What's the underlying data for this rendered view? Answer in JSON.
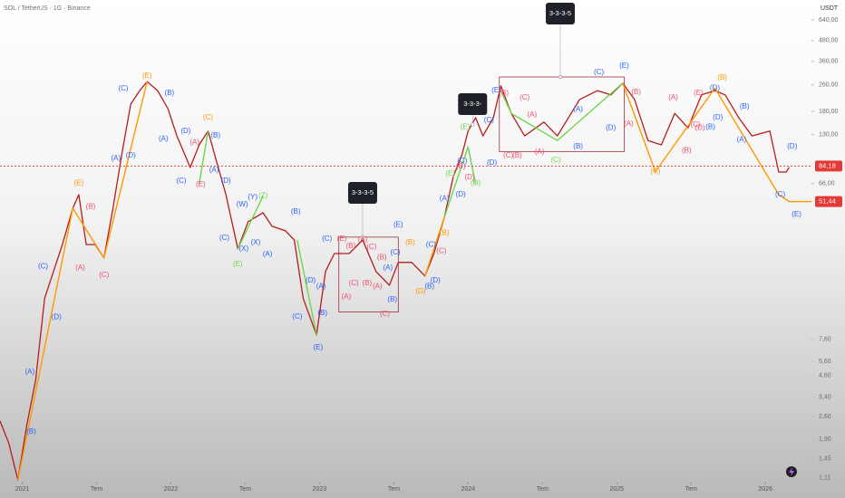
{
  "chart_data": {
    "type": "line",
    "title": "SOL / TetherUS · 1G · Binance",
    "currency": "USDT",
    "log_scale": true,
    "color": "#b71c1c",
    "palette": {
      "blue": "#2962ff",
      "red": "#ef4f6c",
      "orange": "#ff9800",
      "green": "#6fd64a",
      "box": "#a0303a"
    },
    "xlim": [
      2020.85,
      2026.31
    ],
    "ylim": [
      1.08,
      844
    ],
    "xticks": [
      {
        "value": 2021,
        "label": "2021"
      },
      {
        "value": 2021.5,
        "label": "Tem"
      },
      {
        "value": 2022,
        "label": "2022"
      },
      {
        "value": 2022.5,
        "label": "Tem"
      },
      {
        "value": 2023,
        "label": "2023"
      },
      {
        "value": 2023.5,
        "label": "Tem"
      },
      {
        "value": 2024,
        "label": "2024"
      },
      {
        "value": 2024.5,
        "label": "Tem"
      },
      {
        "value": 2025,
        "label": "2025"
      },
      {
        "value": 2025.5,
        "label": "Tem"
      },
      {
        "value": 2026,
        "label": "2026"
      }
    ],
    "yticks": [
      {
        "value": 640,
        "label": "640,00"
      },
      {
        "value": 480,
        "label": "480,00"
      },
      {
        "value": 360,
        "label": "360,00"
      },
      {
        "value": 260,
        "label": "260,00"
      },
      {
        "value": 180,
        "label": "180,00"
      },
      {
        "value": 130,
        "label": "130,00"
      },
      {
        "value": 66,
        "label": "66,00"
      },
      {
        "value": 7.6,
        "label": "7,60"
      },
      {
        "value": 5.6,
        "label": "5,60"
      },
      {
        "value": 4.6,
        "label": "4,60"
      },
      {
        "value": 3.4,
        "label": "3,40"
      },
      {
        "value": 2.6,
        "label": "2,60"
      },
      {
        "value": 1.9,
        "label": "1,90"
      },
      {
        "value": 1.45,
        "label": "1,45"
      },
      {
        "value": 1.11,
        "label": "1,11"
      }
    ],
    "x": [
      2020.85,
      2020.91,
      2020.97,
      2021.03,
      2021.09,
      2021.15,
      2021.21,
      2021.27,
      2021.34,
      2021.38,
      2021.43,
      2021.49,
      2021.55,
      2021.61,
      2021.67,
      2021.73,
      2021.79,
      2021.84,
      2021.91,
      2021.98,
      2022.04,
      2022.13,
      2022.19,
      2022.25,
      2022.31,
      2022.37,
      2022.45,
      2022.52,
      2022.62,
      2022.68,
      2022.77,
      2022.83,
      2022.89,
      2022.98,
      2023.04,
      2023.1,
      2023.2,
      2023.29,
      2023.38,
      2023.47,
      2023.53,
      2023.62,
      2023.71,
      2023.77,
      2023.84,
      2023.9,
      2023.96,
      2024.0,
      2024.05,
      2024.1,
      2024.17,
      2024.22,
      2024.29,
      2024.38,
      2024.51,
      2024.6,
      2024.75,
      2024.87,
      2024.96,
      2025.04,
      2025.12,
      2025.21,
      2025.3,
      2025.39,
      2025.48,
      2025.57,
      2025.66,
      2025.73,
      2025.82,
      2025.91,
      2026.03,
      2026.09,
      2026.14,
      2026.16
    ],
    "values": [
      2.45,
      1.79,
      1.08,
      2.3,
      4.31,
      13.4,
      19.5,
      28.3,
      46.9,
      56.6,
      28.3,
      28.3,
      23.5,
      46.9,
      99.7,
      199,
      240,
      272,
      240,
      187,
      128,
      82.6,
      113,
      137,
      88,
      56.6,
      26.7,
      38.9,
      44.1,
      36.5,
      34.3,
      30.2,
      13.4,
      8.08,
      19.5,
      25.0,
      25.0,
      30.2,
      19.5,
      16.1,
      22.1,
      22.1,
      18.3,
      25.0,
      41.4,
      72.8,
      99.7,
      137,
      165,
      128,
      165,
      256,
      175,
      128,
      155,
      128,
      212,
      240,
      226,
      266,
      212,
      120,
      113,
      175,
      143,
      226,
      240,
      226,
      165,
      128,
      137,
      77.5,
      77.5,
      82.6
    ],
    "last_prices": [
      {
        "value": 84.18,
        "label": "84,18"
      },
      {
        "value": 51.44,
        "label": "51,44"
      }
    ],
    "rectangles": [
      {
        "x": [
          2023.13,
          2023.53
        ],
        "values": [
          31.4,
          11.1
        ]
      },
      {
        "x": [
          2024.21,
          2025.05
        ],
        "values": [
          290,
          103
        ]
      }
    ],
    "trendlines": [
      {
        "color": "orange",
        "x": [
          2020.97,
          2021.34,
          2021.55,
          2021.84
        ],
        "values": [
          1.08,
          46.9,
          23.5,
          272
        ]
      },
      {
        "color": "green",
        "x": [
          2022.19,
          2022.25
        ],
        "values": [
          66,
          137
        ]
      },
      {
        "color": "green",
        "x": [
          2022.45,
          2022.62
        ],
        "values": [
          26.7,
          55.5
        ]
      },
      {
        "color": "green",
        "x": [
          2022.85,
          2022.98
        ],
        "values": [
          30.2,
          8.08
        ]
      },
      {
        "color": "orange",
        "x": [
          2023.71,
          2023.84
        ],
        "values": [
          18.3,
          41.4
        ]
      },
      {
        "color": "green",
        "x": [
          2023.84,
          2024.0,
          2024.05
        ],
        "values": [
          41.4,
          110,
          66
        ]
      },
      {
        "color": "green",
        "x": [
          2024.22,
          2024.29,
          2024.6,
          2025.04
        ],
        "values": [
          240,
          175,
          120,
          266
        ]
      },
      {
        "color": "orange",
        "x": [
          2025.04,
          2025.26,
          2025.66,
          2026.09,
          2026.16,
          2026.31
        ],
        "values": [
          266,
          78,
          248,
          56.6,
          51.44,
          51.44
        ]
      }
    ],
    "boxes": [
      {
        "text": "3-3-3-5",
        "x": 2023.29,
        "y": 58,
        "anchor": 31.4
      },
      {
        "text": "3-3-3-",
        "x": 2024.03,
        "y": 199,
        "anchor": 150
      },
      {
        "text": "3-3-3-5",
        "x": 2024.62,
        "y": 699,
        "anchor": 290
      }
    ],
    "annotations": [
      {
        "text": "(E)",
        "color": "orange",
        "x": 2021.84,
        "y": 294
      },
      {
        "text": "(C)",
        "color": "blue",
        "x": 2021.68,
        "y": 246
      },
      {
        "text": "(B)",
        "color": "blue",
        "x": 2021.99,
        "y": 231
      },
      {
        "text": "(A)",
        "color": "blue",
        "x": 2021.95,
        "y": 123
      },
      {
        "text": "(D)",
        "color": "blue",
        "x": 2022.1,
        "y": 137
      },
      {
        "text": "(C)",
        "color": "orange",
        "x": 2022.25,
        "y": 165
      },
      {
        "text": "(A)",
        "color": "red",
        "x": 2022.16,
        "y": 117
      },
      {
        "text": "(B)",
        "color": "blue",
        "x": 2022.3,
        "y": 128
      },
      {
        "text": "(C)",
        "color": "blue",
        "x": 2022.07,
        "y": 68.4
      },
      {
        "text": "(E)",
        "color": "red",
        "x": 2022.2,
        "y": 65.1
      },
      {
        "text": "(D)",
        "color": "blue",
        "x": 2022.37,
        "y": 68.4
      },
      {
        "text": "(A)",
        "color": "blue",
        "x": 2022.29,
        "y": 79.6
      },
      {
        "text": "(E)",
        "color": "orange",
        "x": 2021.38,
        "y": 66.3
      },
      {
        "text": "(B)",
        "color": "red",
        "x": 2021.46,
        "y": 47.8
      },
      {
        "text": "(A)",
        "color": "red",
        "x": 2021.39,
        "y": 20.5
      },
      {
        "text": "(C)",
        "color": "red",
        "x": 2021.55,
        "y": 18.5
      },
      {
        "text": "(C)",
        "color": "blue",
        "x": 2021.14,
        "y": 20.9
      },
      {
        "text": "(D)",
        "color": "blue",
        "x": 2021.23,
        "y": 10.3
      },
      {
        "text": "(A)",
        "color": "blue",
        "x": 2021.05,
        "y": 4.83
      },
      {
        "text": "(B)",
        "color": "blue",
        "x": 2021.06,
        "y": 2.1
      },
      {
        "text": "(A)",
        "color": "blue",
        "x": 2021.63,
        "y": 93.6
      },
      {
        "text": "(D)",
        "color": "blue",
        "x": 2021.73,
        "y": 97.2
      },
      {
        "text": "(C)",
        "color": "blue",
        "x": 2022.36,
        "y": 31.0
      },
      {
        "text": "(W)",
        "color": "blue",
        "x": 2022.48,
        "y": 49.3
      },
      {
        "text": "(Y)",
        "color": "blue",
        "x": 2022.55,
        "y": 54.6
      },
      {
        "text": "(Z)",
        "color": "green",
        "x": 2022.62,
        "y": 55.5
      },
      {
        "text": "(X)",
        "color": "blue",
        "x": 2022.57,
        "y": 29.1
      },
      {
        "text": "(X)",
        "color": "blue",
        "x": 2022.49,
        "y": 26.7
      },
      {
        "text": "(E)",
        "color": "green",
        "x": 2022.45,
        "y": 21.6
      },
      {
        "text": "(A)",
        "color": "blue",
        "x": 2022.65,
        "y": 24.8
      },
      {
        "text": "(B)",
        "color": "blue",
        "x": 2022.84,
        "y": 44.7
      },
      {
        "text": "(C)",
        "color": "blue",
        "x": 2022.85,
        "y": 10.4
      },
      {
        "text": "(D)",
        "color": "blue",
        "x": 2022.94,
        "y": 17.2
      },
      {
        "text": "(A)",
        "color": "blue",
        "x": 2023.01,
        "y": 15.8
      },
      {
        "text": "(B)",
        "color": "blue",
        "x": 2023.02,
        "y": 10.9
      },
      {
        "text": "(E)",
        "color": "blue",
        "x": 2022.99,
        "y": 6.78
      },
      {
        "text": "(C)",
        "color": "blue",
        "x": 2023.05,
        "y": 30.6
      },
      {
        "text": "(E)",
        "color": "red",
        "x": 2023.15,
        "y": 30.6
      },
      {
        "text": "(B)",
        "color": "red",
        "x": 2023.21,
        "y": 27.7
      },
      {
        "text": "(A)",
        "color": "red",
        "x": 2023.29,
        "y": 30.2
      },
      {
        "text": "(C)",
        "color": "red",
        "x": 2023.35,
        "y": 27.3
      },
      {
        "text": "(B)",
        "color": "red",
        "x": 2023.42,
        "y": 23.7
      },
      {
        "text": "(A)",
        "color": "red",
        "x": 2023.18,
        "y": 13.7
      },
      {
        "text": "(C)",
        "color": "red",
        "x": 2023.23,
        "y": 16.5
      },
      {
        "text": "(B)",
        "color": "red",
        "x": 2023.32,
        "y": 16.5
      },
      {
        "text": "(A)",
        "color": "red",
        "x": 2023.39,
        "y": 15.8
      },
      {
        "text": "(B)",
        "color": "blue",
        "x": 2023.49,
        "y": 13.2
      },
      {
        "text": "(C)",
        "color": "red",
        "x": 2023.44,
        "y": 10.8
      },
      {
        "text": "(A)",
        "color": "blue",
        "x": 2023.46,
        "y": 20.5
      },
      {
        "text": "(C)",
        "color": "blue",
        "x": 2023.51,
        "y": 25.4
      },
      {
        "text": "(E)",
        "color": "blue",
        "x": 2023.53,
        "y": 37.1
      },
      {
        "text": "(B)",
        "color": "orange",
        "x": 2023.61,
        "y": 29.1
      },
      {
        "text": "(D)",
        "color": "orange",
        "x": 2023.68,
        "y": 14.8
      },
      {
        "text": "(B)",
        "color": "blue",
        "x": 2023.74,
        "y": 15.8
      },
      {
        "text": "(D)",
        "color": "blue",
        "x": 2023.78,
        "y": 17.2
      },
      {
        "text": "(C)",
        "color": "blue",
        "x": 2023.75,
        "y": 28.3
      },
      {
        "text": "(B)",
        "color": "orange",
        "x": 2023.84,
        "y": 33.2
      },
      {
        "text": "(A)",
        "color": "blue",
        "x": 2023.84,
        "y": 53.7
      },
      {
        "text": "(D)",
        "color": "blue",
        "x": 2023.95,
        "y": 56.6
      },
      {
        "text": "(E)",
        "color": "green",
        "x": 2023.88,
        "y": 75.6
      },
      {
        "text": "(C)",
        "color": "blue",
        "x": 2023.96,
        "y": 90.2
      },
      {
        "text": "(C)",
        "color": "red",
        "x": 2023.82,
        "y": 25.8
      },
      {
        "text": "(D)",
        "color": "green",
        "x": 2024.05,
        "y": 66.3
      },
      {
        "text": "(D)",
        "color": "red",
        "x": 2024.01,
        "y": 72.1
      },
      {
        "text": "(B)",
        "color": "red",
        "x": 2023.95,
        "y": 83.6
      },
      {
        "text": "(E)",
        "color": "green",
        "x": 2023.98,
        "y": 145
      },
      {
        "text": "(D)",
        "color": "blue",
        "x": 2024.16,
        "y": 88
      },
      {
        "text": "(C)",
        "color": "blue",
        "x": 2024.14,
        "y": 159
      },
      {
        "text": "(E)",
        "color": "blue",
        "x": 2024.19,
        "y": 240
      },
      {
        "text": "(B)",
        "color": "red",
        "x": 2024.24,
        "y": 231
      },
      {
        "text": "(C)",
        "color": "red",
        "x": 2024.38,
        "y": 217
      },
      {
        "text": "(A)",
        "color": "red",
        "x": 2024.43,
        "y": 171
      },
      {
        "text": "(C)",
        "color": "red",
        "x": 2024.27,
        "y": 97.3
      },
      {
        "text": "(B)",
        "color": "red",
        "x": 2024.33,
        "y": 97.3
      },
      {
        "text": "(A)",
        "color": "red",
        "x": 2024.48,
        "y": 102
      },
      {
        "text": "(C)",
        "color": "green",
        "x": 2024.59,
        "y": 91.3
      },
      {
        "text": "(B)",
        "color": "blue",
        "x": 2024.74,
        "y": 110
      },
      {
        "text": "(A)",
        "color": "blue",
        "x": 2024.74,
        "y": 185
      },
      {
        "text": "(C)",
        "color": "blue",
        "x": 2024.88,
        "y": 309
      },
      {
        "text": "(E)",
        "color": "blue",
        "x": 2025.05,
        "y": 337
      },
      {
        "text": "(D)",
        "color": "blue",
        "x": 2024.96,
        "y": 143
      },
      {
        "text": "(B)",
        "color": "red",
        "x": 2025.13,
        "y": 235
      },
      {
        "text": "(A)",
        "color": "red",
        "x": 2025.08,
        "y": 151
      },
      {
        "text": "(A)",
        "color": "red",
        "x": 2025.38,
        "y": 217
      },
      {
        "text": "(C)",
        "color": "orange",
        "x": 2025.26,
        "y": 78
      },
      {
        "text": "(B)",
        "color": "red",
        "x": 2025.47,
        "y": 104
      },
      {
        "text": "(D)",
        "color": "red",
        "x": 2025.56,
        "y": 143
      },
      {
        "text": "(E)",
        "color": "red",
        "x": 2025.55,
        "y": 231
      },
      {
        "text": "(D)",
        "color": "blue",
        "x": 2025.66,
        "y": 248
      },
      {
        "text": "(B)",
        "color": "orange",
        "x": 2025.71,
        "y": 286
      },
      {
        "text": "(B)",
        "color": "blue",
        "x": 2025.63,
        "y": 145
      },
      {
        "text": "(C)",
        "color": "red",
        "x": 2025.53,
        "y": 149
      },
      {
        "text": "(D)",
        "color": "blue",
        "x": 2025.68,
        "y": 165
      },
      {
        "text": "(B)",
        "color": "blue",
        "x": 2025.86,
        "y": 192
      },
      {
        "text": "(A)",
        "color": "blue",
        "x": 2025.84,
        "y": 121
      },
      {
        "text": "(D)",
        "color": "blue",
        "x": 2026.18,
        "y": 110
      },
      {
        "text": "(C)",
        "color": "blue",
        "x": 2026.1,
        "y": 56.6
      },
      {
        "text": "(E)",
        "color": "blue",
        "x": 2026.21,
        "y": 43
      }
    ]
  }
}
